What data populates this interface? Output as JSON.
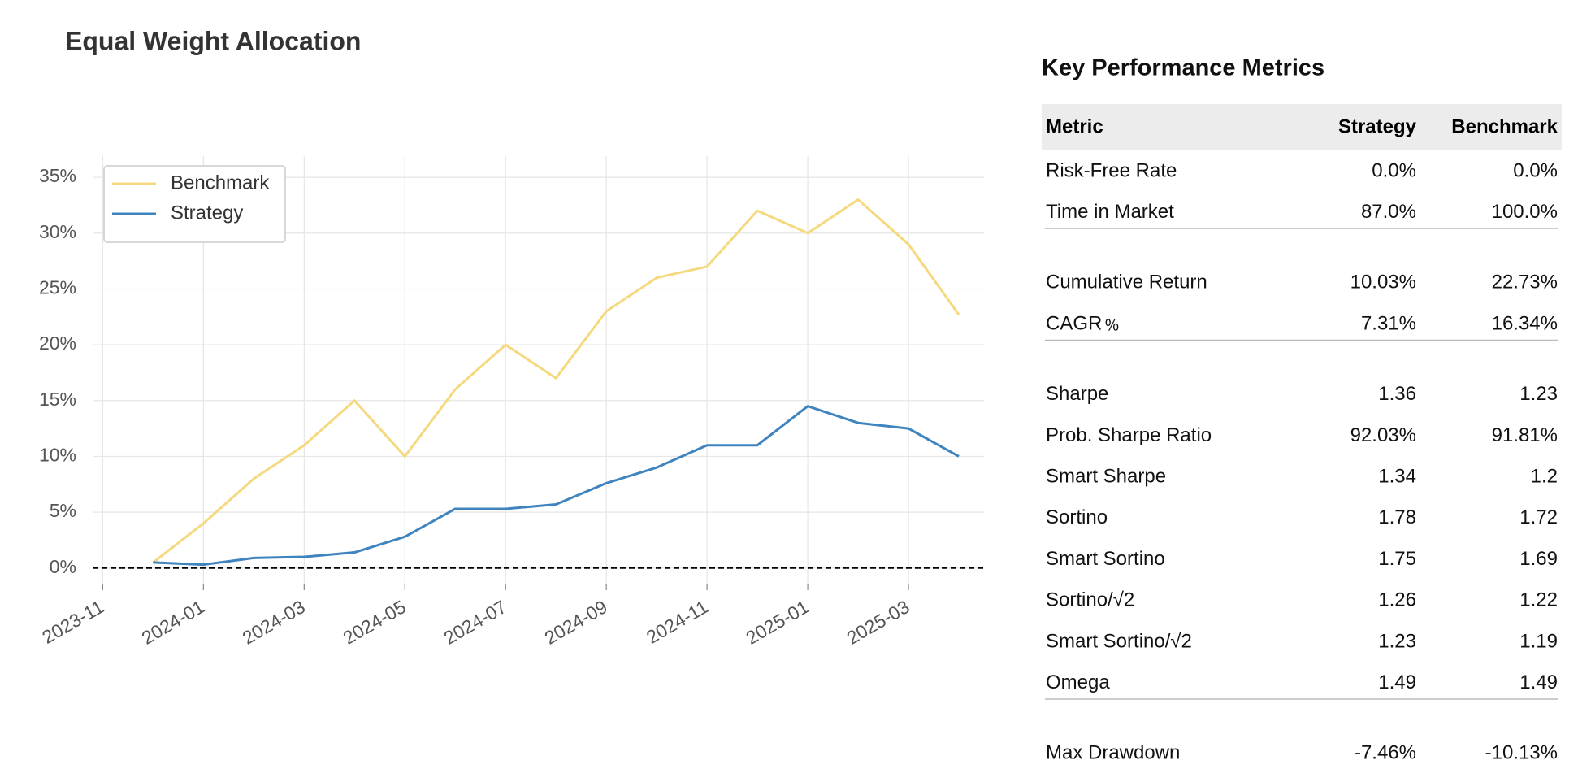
{
  "chart_data": {
    "type": "line",
    "title": "Equal Weight Allocation",
    "x": [
      "2023-12",
      "2024-01",
      "2024-02",
      "2024-03",
      "2024-04",
      "2024-05",
      "2024-06",
      "2024-07",
      "2024-08",
      "2024-09",
      "2024-10",
      "2024-11",
      "2024-12",
      "2025-01",
      "2025-02",
      "2025-03",
      "2025-04"
    ],
    "series": [
      {
        "name": "Benchmark",
        "color": "#f5d97e",
        "values": [
          0.5,
          4,
          8,
          11,
          15,
          10,
          16,
          20,
          17,
          23,
          26,
          27,
          32,
          30,
          33,
          29,
          22.7
        ]
      },
      {
        "name": "Strategy",
        "color": "#3f84bf",
        "values": [
          0.5,
          0.3,
          0.9,
          1.0,
          1.4,
          2.8,
          5.3,
          5.3,
          5.7,
          7.6,
          9,
          11,
          11,
          14.5,
          13,
          12.5,
          10.0
        ]
      }
    ],
    "ylim": [
      -1.4,
      36.9
    ],
    "yticks": [
      {
        "value": 0,
        "label": "0%"
      },
      {
        "value": 5,
        "label": "5%"
      },
      {
        "value": 10,
        "label": "10%"
      },
      {
        "value": 15,
        "label": "15%"
      },
      {
        "value": 20,
        "label": "20%"
      },
      {
        "value": 25,
        "label": "25%"
      },
      {
        "value": 30,
        "label": "30%"
      },
      {
        "value": 35,
        "label": "35%"
      }
    ],
    "xticks": [
      "2023-11",
      "2024-01",
      "2024-03",
      "2024-05",
      "2024-07",
      "2024-09",
      "2024-11",
      "2025-01",
      "2025-03"
    ],
    "grid": true,
    "legend": "upper-left"
  },
  "table": {
    "title": "Key Performance Metrics",
    "header": [
      "Metric",
      "Strategy",
      "Benchmark"
    ],
    "sections": [
      [
        [
          "Risk-Free Rate",
          "0.0%",
          "0.0%"
        ],
        [
          "Time in Market",
          "87.0%",
          "100.0%"
        ]
      ],
      [
        [
          "Cumulative Return",
          "10.03%",
          "22.73%"
        ],
        [
          "CAGR﹪",
          "7.31%",
          "16.34%"
        ]
      ],
      [
        [
          "Sharpe",
          "1.36",
          "1.23"
        ],
        [
          "Prob. Sharpe Ratio",
          "92.03%",
          "91.81%"
        ],
        [
          "Smart Sharpe",
          "1.34",
          "1.2"
        ],
        [
          "Sortino",
          "1.78",
          "1.72"
        ],
        [
          "Smart Sortino",
          "1.75",
          "1.69"
        ],
        [
          "Sortino/√2",
          "1.26",
          "1.22"
        ],
        [
          "Smart Sortino/√2",
          "1.23",
          "1.19"
        ],
        [
          "Omega",
          "1.49",
          "1.49"
        ]
      ],
      [
        [
          "Max Drawdown",
          "-7.46%",
          "-10.13%"
        ]
      ]
    ]
  }
}
